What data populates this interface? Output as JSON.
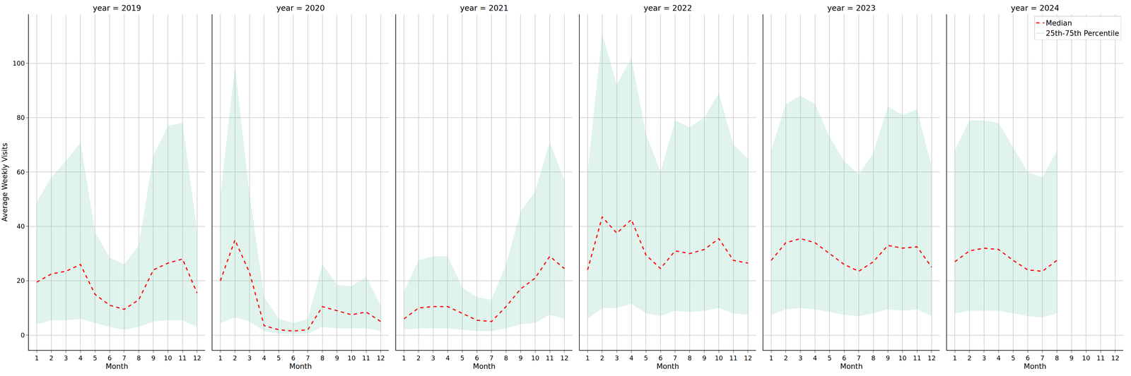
{
  "chart_data": [
    {
      "type": "line",
      "title": "year = 2019",
      "xlabel": "Month",
      "ylabel": "Average Weekly Visits",
      "x": [
        1,
        2,
        3,
        4,
        5,
        6,
        7,
        8,
        9,
        10,
        11,
        12
      ],
      "xlim": [
        0.45,
        12.55
      ],
      "xticks": [
        1,
        2,
        3,
        4,
        5,
        6,
        7,
        8,
        9,
        10,
        11,
        12
      ],
      "ylim": [
        -5.5,
        118
      ],
      "yticks": [
        0,
        20,
        40,
        60,
        80,
        100
      ],
      "grid": true,
      "series": [
        {
          "name": "Median",
          "type": "line",
          "color": "#ff0000",
          "line_style": "dashed",
          "values": [
            19.5,
            22.5,
            23.5,
            26,
            15,
            11,
            9.5,
            13,
            24,
            26.5,
            28,
            15.5
          ]
        },
        {
          "name": "25th-75th Percentile",
          "type": "area",
          "color": "#66c2a5",
          "lower": [
            4,
            5.5,
            5.5,
            6,
            4.5,
            3,
            2,
            3,
            5,
            5.5,
            5.5,
            3
          ],
          "upper": [
            49,
            58,
            64,
            71,
            38,
            28.5,
            26,
            33,
            66,
            77,
            78,
            38
          ]
        }
      ]
    },
    {
      "type": "line",
      "title": "year = 2020",
      "xlabel": "Month",
      "tick_labels": "x",
      "x": [
        1,
        2,
        3,
        4,
        5,
        6,
        7,
        8,
        9,
        10,
        11,
        12
      ],
      "xlim": [
        0.45,
        12.55
      ],
      "xticks": [
        1,
        2,
        3,
        4,
        5,
        6,
        7,
        8,
        9,
        10,
        11,
        12
      ],
      "ylim": [
        -5.5,
        118
      ],
      "yticks": [
        0,
        20,
        40,
        60,
        80,
        100
      ],
      "grid": true,
      "series": [
        {
          "name": "Median",
          "type": "line",
          "color": "#ff0000",
          "line_style": "dashed",
          "values": [
            20,
            35,
            23,
            3.5,
            2,
            1.5,
            2,
            10.5,
            9,
            7.5,
            8.5,
            5
          ]
        },
        {
          "name": "25th-75th Percentile",
          "type": "area",
          "color": "#66c2a5",
          "lower": [
            4.5,
            6.5,
            5,
            1.5,
            0.5,
            0.5,
            0.5,
            3,
            2.5,
            2.5,
            2.5,
            1.5
          ],
          "upper": [
            51,
            99,
            52,
            14,
            6,
            4.5,
            6,
            26,
            18.5,
            18,
            21.5,
            11
          ]
        }
      ]
    },
    {
      "type": "line",
      "title": "year = 2021",
      "xlabel": "Month",
      "tick_labels": "x",
      "x": [
        1,
        2,
        3,
        4,
        5,
        6,
        7,
        8,
        9,
        10,
        11,
        12
      ],
      "xlim": [
        0.45,
        12.55
      ],
      "xticks": [
        1,
        2,
        3,
        4,
        5,
        6,
        7,
        8,
        9,
        10,
        11,
        12
      ],
      "ylim": [
        -5.5,
        118
      ],
      "yticks": [
        0,
        20,
        40,
        60,
        80,
        100
      ],
      "grid": true,
      "series": [
        {
          "name": "Median",
          "type": "line",
          "color": "#ff0000",
          "line_style": "dashed",
          "values": [
            6,
            10,
            10.5,
            10.5,
            8,
            5.5,
            5,
            10.5,
            17,
            21,
            29,
            24.5
          ]
        },
        {
          "name": "25th-75th Percentile",
          "type": "area",
          "color": "#66c2a5",
          "lower": [
            2,
            2.5,
            2.5,
            2.5,
            2,
            1.5,
            1.5,
            2.5,
            4,
            4.5,
            7.5,
            6
          ],
          "upper": [
            16,
            27.5,
            29,
            29,
            17.5,
            14,
            13,
            26,
            45.5,
            53,
            71,
            57
          ]
        }
      ]
    },
    {
      "type": "line",
      "title": "year = 2022",
      "xlabel": "Month",
      "tick_labels": "x",
      "x": [
        1,
        2,
        3,
        4,
        5,
        6,
        7,
        8,
        9,
        10,
        11,
        12
      ],
      "xlim": [
        0.45,
        12.55
      ],
      "xticks": [
        1,
        2,
        3,
        4,
        5,
        6,
        7,
        8,
        9,
        10,
        11,
        12
      ],
      "ylim": [
        -5.5,
        118
      ],
      "yticks": [
        0,
        20,
        40,
        60,
        80,
        100
      ],
      "grid": true,
      "series": [
        {
          "name": "Median",
          "type": "line",
          "color": "#ff0000",
          "line_style": "dashed",
          "values": [
            24,
            43.5,
            37.5,
            42.5,
            29.5,
            24.5,
            31,
            30,
            31.5,
            35.5,
            27.5,
            26.5
          ]
        },
        {
          "name": "25th-75th Percentile",
          "type": "area",
          "color": "#66c2a5",
          "lower": [
            6,
            10,
            10,
            11.5,
            8,
            7,
            9,
            8.5,
            9,
            10,
            8,
            7.5
          ],
          "upper": [
            60,
            111,
            92,
            102,
            74,
            60,
            79,
            76.5,
            80,
            89,
            70,
            65
          ]
        }
      ]
    },
    {
      "type": "line",
      "title": "year = 2023",
      "xlabel": "Month",
      "tick_labels": "x",
      "x": [
        1,
        2,
        3,
        4,
        5,
        6,
        7,
        8,
        9,
        10,
        11,
        12
      ],
      "xlim": [
        0.45,
        12.55
      ],
      "xticks": [
        1,
        2,
        3,
        4,
        5,
        6,
        7,
        8,
        9,
        10,
        11,
        12
      ],
      "ylim": [
        -5.5,
        118
      ],
      "yticks": [
        0,
        20,
        40,
        60,
        80,
        100
      ],
      "grid": true,
      "series": [
        {
          "name": "Median",
          "type": "line",
          "color": "#ff0000",
          "line_style": "dashed",
          "values": [
            27.5,
            34,
            35.5,
            34,
            30,
            26,
            23.5,
            27,
            33,
            32,
            32.5,
            25
          ]
        },
        {
          "name": "25th-75th Percentile",
          "type": "area",
          "color": "#66c2a5",
          "lower": [
            7.5,
            9.5,
            10,
            9.5,
            8.5,
            7.5,
            7,
            8,
            9.5,
            9,
            9.5,
            7
          ],
          "upper": [
            68,
            85,
            88,
            85,
            73,
            64,
            59,
            67,
            84,
            81,
            83,
            62
          ]
        }
      ]
    },
    {
      "type": "line",
      "title": "year = 2024",
      "xlabel": "Month",
      "tick_labels": "x",
      "legend": "upper right",
      "x": [
        1,
        2,
        3,
        4,
        5,
        6,
        7,
        8
      ],
      "xlim": [
        0.45,
        12.55
      ],
      "xticks": [
        1,
        2,
        3,
        4,
        5,
        6,
        7,
        8,
        9,
        10,
        11,
        12
      ],
      "ylim": [
        -5.5,
        118
      ],
      "yticks": [
        0,
        20,
        40,
        60,
        80,
        100
      ],
      "grid": true,
      "series": [
        {
          "name": "Median",
          "type": "line",
          "color": "#ff0000",
          "line_style": "dashed",
          "values": [
            27,
            31,
            32,
            31.5,
            27.5,
            24,
            23.5,
            27.5
          ]
        },
        {
          "name": "25th-75th Percentile",
          "type": "area",
          "color": "#66c2a5",
          "lower": [
            8,
            9,
            9,
            9,
            8,
            7,
            6.5,
            8
          ],
          "upper": [
            68,
            79,
            79,
            78,
            69,
            60,
            58,
            68
          ]
        }
      ]
    }
  ]
}
